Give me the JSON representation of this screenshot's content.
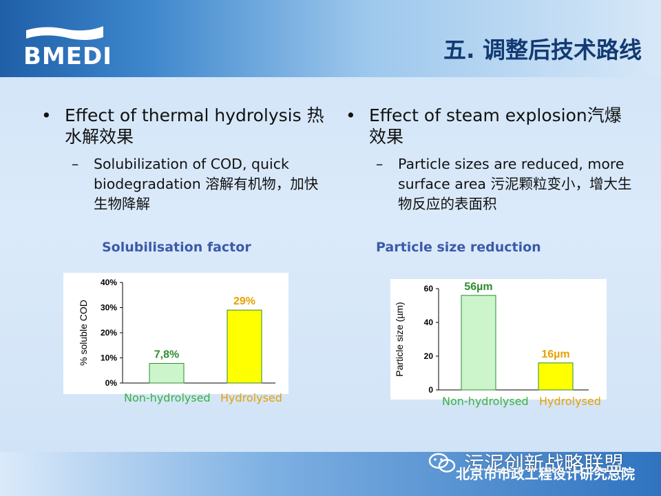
{
  "header": {
    "logo_text": "BMEDI",
    "title": "五. 调整后技术路线"
  },
  "left": {
    "bullet": "Effect of thermal hydrolysis 热水解效果",
    "sub": "Solubilization of COD, quick biodegradation 溶解有机物，加快生物降解"
  },
  "right": {
    "bullet": "Effect of steam explosion汽爆效果",
    "sub": "Particle sizes are reduced, more surface area 污泥颗粒变小，增大生物反应的表面积"
  },
  "chart_data": [
    {
      "type": "bar",
      "title": "Solubilisation factor",
      "ylabel": "% soluble COD",
      "categories": [
        "Non-hydrolysed",
        "Hydrolysed"
      ],
      "values": [
        7.8,
        29
      ],
      "value_labels": [
        "7,8%",
        "29%"
      ],
      "yticks": [
        "0%",
        "10%",
        "20%",
        "30%",
        "40%"
      ],
      "ylim": [
        0,
        40
      ],
      "colors": {
        "bars": [
          "#ccf5cc",
          "#ffff00"
        ],
        "value_labels": [
          "#2f8a2f",
          "#e8a000"
        ],
        "cat_labels": [
          "#3bb13b",
          "#e8a000"
        ]
      }
    },
    {
      "type": "bar",
      "title": "Particle size reduction",
      "ylabel": "Particle size (µm)",
      "categories": [
        "Non-hydrolysed",
        "Hydrolysed"
      ],
      "values": [
        56,
        16
      ],
      "value_labels": [
        "56µm",
        "16µm"
      ],
      "yticks": [
        "0",
        "20",
        "40",
        "60"
      ],
      "ylim": [
        0,
        60
      ],
      "colors": {
        "bars": [
          "#ccf5cc",
          "#ffff00"
        ],
        "value_labels": [
          "#2f8a2f",
          "#e8a000"
        ],
        "cat_labels": [
          "#3bb13b",
          "#e8a000"
        ]
      }
    }
  ],
  "watermark": {
    "text": "污泥创新战略联盟"
  },
  "footer": {
    "text": "北京市市政工程设计研究总院"
  }
}
